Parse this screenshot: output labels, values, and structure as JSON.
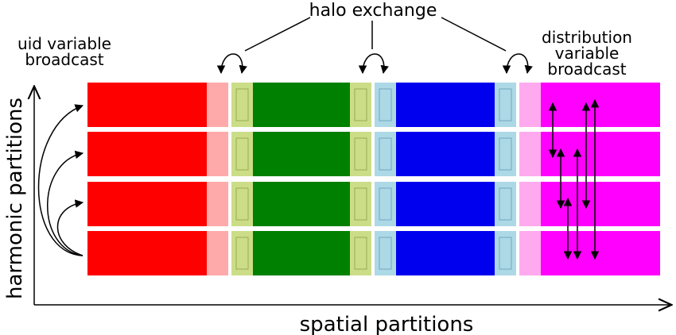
{
  "labels": {
    "halo_exchange": "halo exchange",
    "uid_broadcast_line1": "uid variable",
    "uid_broadcast_line2": "broadcast",
    "distribution_line1": "distribution",
    "distribution_line2": "variable",
    "distribution_line3": "broadcast",
    "y_axis": "harmonic partitions",
    "x_axis": "spatial partitions"
  },
  "partitions": [
    {
      "name": "red",
      "main": "#ff0000",
      "halo": "#ffaaaa"
    },
    {
      "name": "green",
      "main": "#008000",
      "halo": "#ccdd88"
    },
    {
      "name": "blue",
      "main": "#0000ee",
      "halo": "#add8e6"
    },
    {
      "name": "magenta",
      "main": "#ff00ff",
      "halo": "#ffaaee"
    }
  ],
  "harmonic_rows": 4
}
